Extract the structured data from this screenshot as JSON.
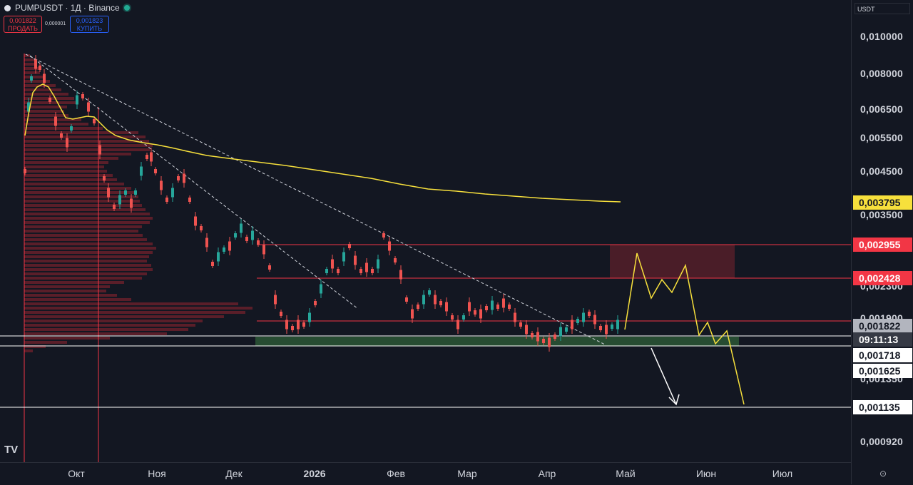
{
  "header": {
    "symbol_title": "PUMPUSDT · 1Д · Binance",
    "sell_price": "0,001822",
    "sell_label": "ПРОДАТЬ",
    "spread": "0,000001",
    "buy_price": "0,001823",
    "buy_label": "КУПИТЬ"
  },
  "price_axis": {
    "currency": "USDT",
    "labels": [
      "0,010000",
      "0,008000",
      "0,006500",
      "0,005500",
      "0,004500",
      "0,003500",
      "0,002300",
      "0,001900",
      "0,001350",
      "0,000920"
    ],
    "tags": {
      "ma": {
        "value": "0,003795",
        "bg": "#f7e03c",
        "fg": "#131722"
      },
      "resistance_top": {
        "value": "0,002955",
        "bg": "#f23645",
        "fg": "#ffffff"
      },
      "resistance_bottom": {
        "value": "0,002428",
        "bg": "#f23645",
        "fg": "#ffffff"
      },
      "last_price": {
        "value": "0,001822",
        "bg": "#b2b5be",
        "fg": "#131722"
      },
      "countdown": {
        "value": "09:11:13",
        "bg": "#363a45",
        "fg": "#ffffff"
      },
      "support_top": {
        "value": "0,001718",
        "bg": "#ffffff",
        "fg": "#131722"
      },
      "support_bottom": {
        "value": "0,001625",
        "bg": "#ffffff",
        "fg": "#131722"
      },
      "target": {
        "value": "0,001135",
        "bg": "#ffffff",
        "fg": "#131722"
      }
    }
  },
  "time_axis": {
    "labels": [
      "Окт",
      "Ноя",
      "Дек",
      "2026",
      "Фев",
      "Мар",
      "Апр",
      "Май",
      "Июн",
      "Июл"
    ]
  },
  "colors": {
    "background": "#131722",
    "up": "#26a69a",
    "down": "#ef5350",
    "ma": "#f7e03c",
    "projection": "#f7e03c",
    "resistance_zone": "rgba(178,40,51,0.35)",
    "support_zone": "rgba(76,175,80,0.35)"
  },
  "icons": {
    "logo": "tradingview-logo-icon",
    "settings": "settings-gear-icon"
  },
  "footer": {
    "logo_text": "TV",
    "settings_glyph": "⊙"
  }
}
